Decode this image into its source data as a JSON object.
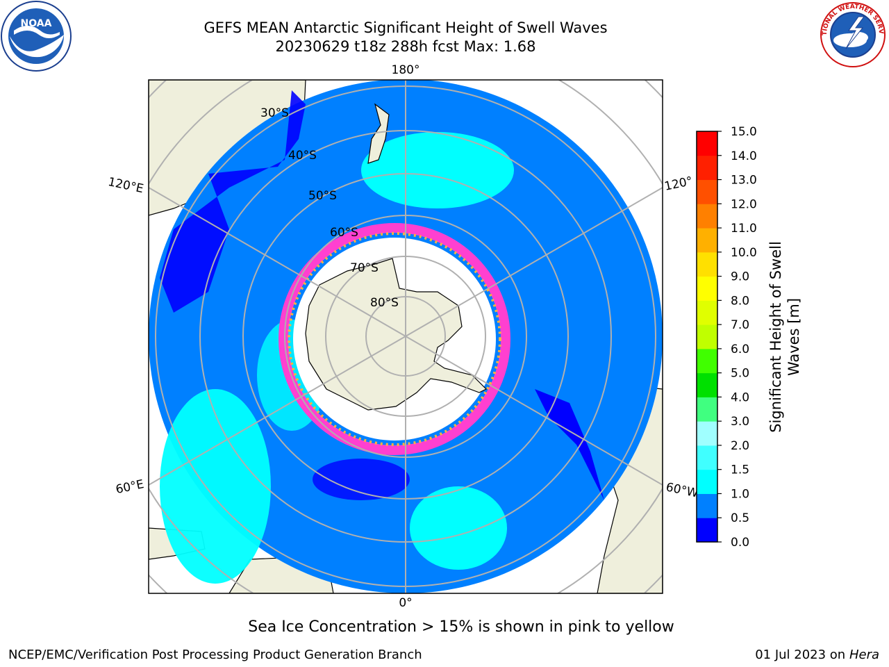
{
  "title_line1": "GEFS MEAN Antarctic Significant Height of Swell Waves",
  "title_line2": "20230629 t18z 288h fcst   Max: 1.68",
  "logos": {
    "left": {
      "icon": "noaa-logo-icon",
      "text": "NOAA"
    },
    "right": {
      "icon": "nws-logo-icon",
      "text": "NATIONAL WEATHER SERVICE"
    }
  },
  "map": {
    "lon_labels": {
      "top": "180°",
      "bottom": "0°",
      "left_upper": "120°E",
      "left_lower": "60°E",
      "right_upper": "120°",
      "right_lower": "60°W"
    },
    "lat_labels": [
      "30°S",
      "40°S",
      "50°S",
      "60°S",
      "70°S",
      "80°S"
    ]
  },
  "colorbar": {
    "label": "Significant Height of Swell Waves [m]",
    "label_line1": "Significant Height of Swell",
    "label_line2": "Waves [m]",
    "ticks": [
      "0.0",
      "0.5",
      "1.0",
      "1.5",
      "2.0",
      "3.0",
      "4.0",
      "5.0",
      "6.0",
      "7.0",
      "8.0",
      "9.0",
      "10.0",
      "11.0",
      "12.0",
      "13.0",
      "14.0",
      "15.0"
    ],
    "colors": [
      "#0000ff",
      "#0080ff",
      "#00ffff",
      "#40ffff",
      "#a0ffff",
      "#40ff80",
      "#00e000",
      "#40ff00",
      "#c0ff00",
      "#e0ff00",
      "#ffff00",
      "#ffe000",
      "#ffb000",
      "#ff8000",
      "#ff5000",
      "#ff2000",
      "#ff0000"
    ]
  },
  "note": "Sea Ice Concentration > 15% is shown in pink to yellow",
  "footer_left": "NCEP/EMC/Verification Post Processing Product Generation Branch",
  "footer_right_prefix": "01 Jul 2023 on ",
  "footer_right_machine": "Hera"
}
